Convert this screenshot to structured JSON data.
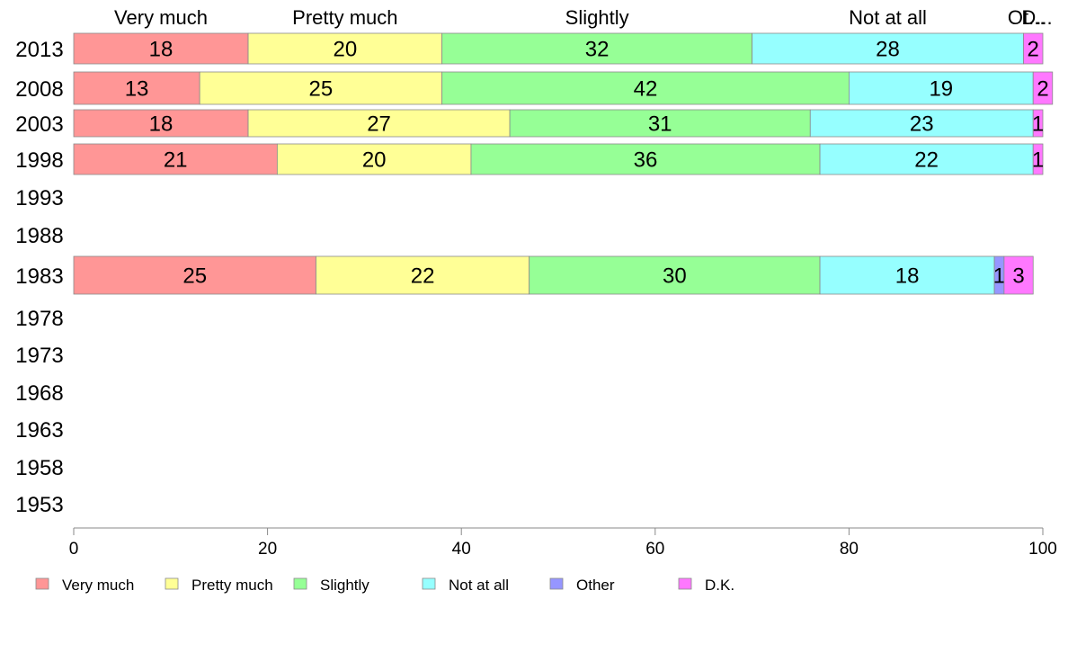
{
  "chart_data": {
    "type": "bar",
    "orientation": "horizontal",
    "stacked": true,
    "title": "",
    "xlabel": "",
    "ylabel": "",
    "xlim": [
      0,
      100
    ],
    "x_ticks": [
      0,
      20,
      40,
      60,
      80,
      100
    ],
    "grid": false,
    "legend_position": "bottom",
    "top_labels": [
      "Very much",
      "Pretty much",
      "Slightly",
      "Not at all",
      "Ot...",
      "D..."
    ],
    "categories": [
      "2013",
      "2008",
      "2003",
      "1998",
      "1993",
      "1988",
      "1983",
      "1978",
      "1973",
      "1968",
      "1963",
      "1958",
      "1953"
    ],
    "series": [
      {
        "name": "Very much",
        "color": "#FF9696",
        "values": [
          18,
          13,
          18,
          21,
          null,
          null,
          25,
          null,
          null,
          null,
          null,
          null,
          null
        ]
      },
      {
        "name": "Pretty much",
        "color": "#FFFF96",
        "values": [
          20,
          25,
          27,
          20,
          null,
          null,
          22,
          null,
          null,
          null,
          null,
          null,
          null
        ]
      },
      {
        "name": "Slightly",
        "color": "#96FF96",
        "values": [
          32,
          42,
          31,
          36,
          null,
          null,
          30,
          null,
          null,
          null,
          null,
          null,
          null
        ]
      },
      {
        "name": "Not at all",
        "color": "#96FFFF",
        "values": [
          28,
          19,
          23,
          22,
          null,
          null,
          18,
          null,
          null,
          null,
          null,
          null,
          null
        ]
      },
      {
        "name": "Other",
        "color": "#9696FF",
        "values": [
          0,
          0,
          0,
          0,
          null,
          null,
          1,
          null,
          null,
          null,
          null,
          null,
          null
        ]
      },
      {
        "name": "D.K.",
        "color": "#FF78FF",
        "values": [
          2,
          2,
          1,
          1,
          null,
          null,
          3,
          null,
          null,
          null,
          null,
          null,
          null
        ]
      }
    ],
    "segment_labels": [
      [
        "18",
        "20",
        "32",
        "28",
        "",
        "2"
      ],
      [
        "13",
        "25",
        "42",
        "19",
        "",
        "2"
      ],
      [
        "18",
        "27",
        "31",
        "23",
        "",
        "1"
      ],
      [
        "21",
        "20",
        "36",
        "22",
        "",
        "1"
      ],
      [
        "",
        "",
        "",
        "",
        "",
        ""
      ],
      [
        "",
        "",
        "",
        "",
        "",
        ""
      ],
      [
        "25",
        "22",
        "30",
        "18",
        "1",
        "3"
      ],
      [
        "",
        "",
        "",
        "",
        "",
        ""
      ],
      [
        "",
        "",
        "",
        "",
        "",
        ""
      ],
      [
        "",
        "",
        "",
        "",
        "",
        ""
      ],
      [
        "",
        "",
        "",
        "",
        "",
        ""
      ],
      [
        "",
        "",
        "",
        "",
        "",
        ""
      ],
      [
        "",
        "",
        "",
        "",
        "",
        ""
      ]
    ]
  }
}
